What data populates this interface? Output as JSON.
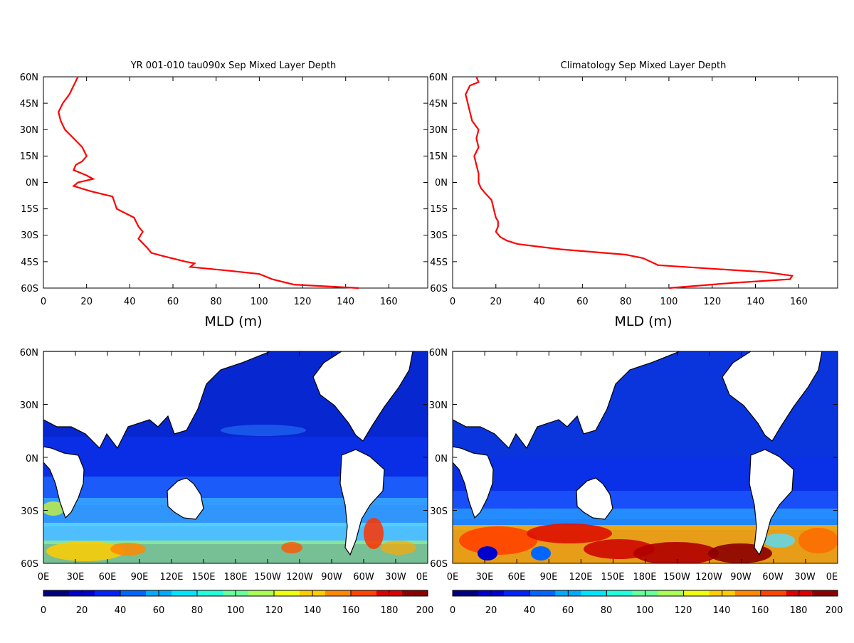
{
  "panels_top": [
    {
      "title": "YR 001-010 tau090x Sep Mixed Layer Depth",
      "xlabel": "MLD (m)",
      "x_ticks": [
        "0",
        "20",
        "40",
        "60",
        "80",
        "100",
        "120",
        "140",
        "160"
      ],
      "y_ticks": [
        "60N",
        "45N",
        "30N",
        "15N",
        "0N",
        "15S",
        "30S",
        "45S",
        "60S"
      ]
    },
    {
      "title": "Climatology Sep Mixed Layer Depth",
      "xlabel": "MLD (m)",
      "x_ticks": [
        "0",
        "20",
        "40",
        "60",
        "80",
        "100",
        "120",
        "140",
        "160"
      ],
      "y_ticks": [
        "60N",
        "45N",
        "30N",
        "15N",
        "0N",
        "15S",
        "30S",
        "45S",
        "60S"
      ]
    }
  ],
  "panels_map": [
    {
      "y_ticks": [
        "60N",
        "30N",
        "0N",
        "30S",
        "60S"
      ],
      "x_ticks": [
        "0E",
        "30E",
        "60E",
        "90E",
        "120E",
        "150E",
        "180E",
        "150W",
        "120W",
        "90W",
        "60W",
        "30W",
        "0E"
      ]
    },
    {
      "y_ticks": [
        "60N",
        "30N",
        "0N",
        "30S",
        "60S"
      ],
      "x_ticks": [
        "0E",
        "30E",
        "60E",
        "90E",
        "120E",
        "150E",
        "180E",
        "150W",
        "120W",
        "90W",
        "60W",
        "30W",
        "0E"
      ]
    }
  ],
  "colorbars": [
    {
      "labels": [
        "0",
        "20",
        "40",
        "60",
        "80",
        "100",
        "120",
        "140",
        "160",
        "180",
        "200"
      ]
    },
    {
      "labels": [
        "0",
        "20",
        "40",
        "60",
        "80",
        "100",
        "120",
        "140",
        "160",
        "180",
        "200"
      ]
    }
  ],
  "colors": {
    "line": "#ff0000",
    "scale": [
      "#00007f",
      "#0000cc",
      "#0022ff",
      "#0066ff",
      "#00aaff",
      "#00e5ff",
      "#22ffdd",
      "#66ff99",
      "#aaff55",
      "#eeff11",
      "#ffcc00",
      "#ff8800",
      "#ff4400",
      "#dd0000",
      "#8b0000"
    ]
  },
  "chart_data": [
    {
      "type": "line",
      "title": "YR 001-010 tau090x Sep Mixed Layer Depth",
      "xlabel": "MLD (m)",
      "ylabel": "",
      "xlim": [
        0,
        178
      ],
      "ylim": [
        -60,
        60
      ],
      "series": [
        {
          "x": [
            16,
            14,
            12,
            9,
            7,
            8,
            10,
            14,
            18,
            20,
            18,
            15,
            14,
            20,
            23,
            16,
            14,
            22,
            32,
            34,
            42,
            44,
            46,
            44,
            48,
            50,
            56,
            66,
            70,
            68,
            85,
            100,
            106,
            116,
            146
          ],
          "y": [
            60,
            55,
            50,
            45,
            40,
            35,
            30,
            25,
            20,
            15,
            12,
            10,
            7,
            4,
            2,
            0,
            -2,
            -5,
            -8,
            -15,
            -20,
            -25,
            -28,
            -32,
            -37,
            -40,
            -42,
            -45,
            -46,
            -48,
            -50,
            -52,
            -55,
            -58,
            -60
          ]
        }
      ]
    },
    {
      "type": "line",
      "title": "Climatology Sep Mixed Layer Depth",
      "xlabel": "MLD (m)",
      "ylabel": "",
      "xlim": [
        0,
        178
      ],
      "ylim": [
        -60,
        60
      ],
      "series": [
        {
          "x": [
            11,
            12,
            8,
            6,
            7,
            8,
            9,
            12,
            11,
            12,
            10,
            11,
            12,
            12,
            13,
            15,
            18,
            19,
            20,
            21,
            21,
            20,
            22,
            25,
            30,
            50,
            80,
            88,
            95,
            120,
            145,
            157,
            156,
            130,
            100
          ],
          "y": [
            60,
            57,
            55,
            50,
            45,
            40,
            35,
            30,
            25,
            20,
            15,
            10,
            5,
            0,
            -3,
            -6,
            -10,
            -15,
            -20,
            -22,
            -25,
            -28,
            -31,
            -33,
            -35,
            -38,
            -41,
            -43,
            -47,
            -49,
            -51,
            -53,
            -55,
            -57,
            -60
          ]
        }
      ]
    }
  ]
}
